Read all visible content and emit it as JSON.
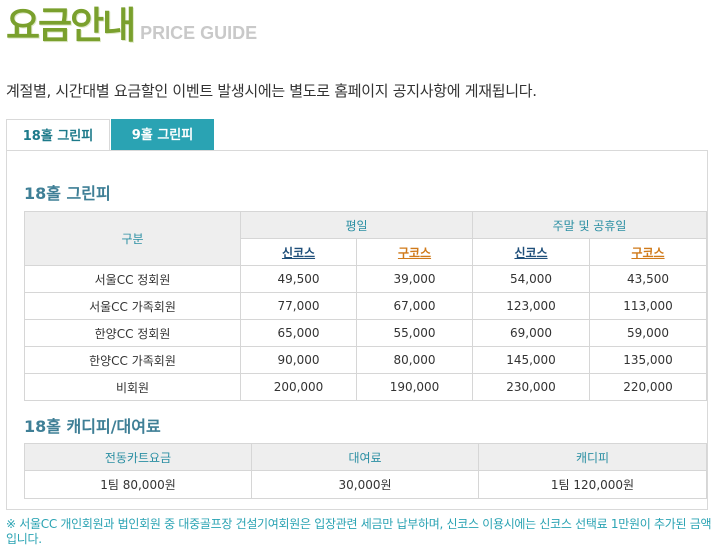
{
  "header": {
    "title": "요금안내",
    "subtitle": "PRICE GUIDE"
  },
  "notice": "계절별, 시간대별 요금할인 이벤트 발생시에는 별도로 홈페이지 공지사항에 게재됩니다.",
  "tabs": [
    {
      "label": "18홀 그린피",
      "active": true
    },
    {
      "label": "9홀 그린피",
      "active": false
    }
  ],
  "greenfee": {
    "title": "18홀 그린피",
    "head_category": "구분",
    "head_weekday": "평일",
    "head_weekend": "주말 및 공휴일",
    "sub_new": "신코스",
    "sub_old": "구코스",
    "rows": [
      {
        "label": "서울CC 정회원",
        "values": [
          "49,500",
          "39,000",
          "54,000",
          "43,500"
        ]
      },
      {
        "label": "서울CC 가족회원",
        "values": [
          "77,000",
          "67,000",
          "123,000",
          "113,000"
        ]
      },
      {
        "label": "한양CC 정회원",
        "values": [
          "65,000",
          "55,000",
          "69,000",
          "59,000"
        ]
      },
      {
        "label": "한양CC 가족회원",
        "values": [
          "90,000",
          "80,000",
          "145,000",
          "135,000"
        ]
      },
      {
        "label": "비회원",
        "values": [
          "200,000",
          "190,000",
          "230,000",
          "220,000"
        ]
      }
    ]
  },
  "caddie": {
    "title": "18홀 캐디피/대여료",
    "headers": [
      "전동카트요금",
      "대여료",
      "캐디피"
    ],
    "values": [
      "1팀 80,000원",
      "30,000원",
      "1팀 120,000원"
    ]
  },
  "footnote": "※ 서울CC 개인회원과 법인회원 중 대중골프장 건설기여회원은 입장관련 세금만 납부하며, 신코스 이용시에는 신코스 선택료 1만원이 추가된 금액입니다.",
  "colors": {
    "brand_green": "#7aa02d",
    "accent_teal": "#2aa3b3",
    "title_blue": "#3f7f96"
  }
}
